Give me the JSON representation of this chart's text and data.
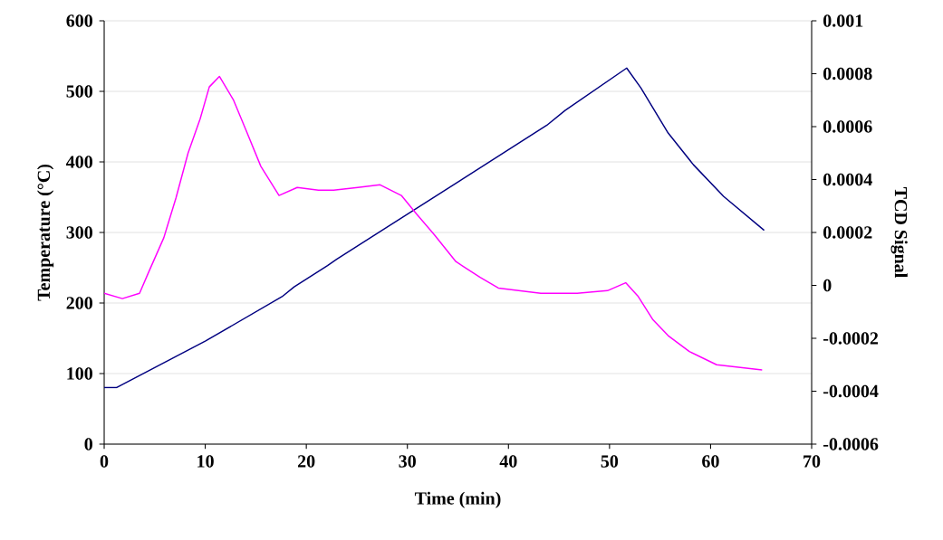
{
  "chart_data": {
    "type": "line",
    "xlabel": "Time (min)",
    "ylabel": "Temperature (°C)",
    "y2label": "TCD Signal",
    "xlim": [
      0,
      70
    ],
    "xticks": [
      0,
      10,
      20,
      30,
      40,
      50,
      60,
      70
    ],
    "ylim": [
      0,
      600
    ],
    "yticks": [
      0,
      100,
      200,
      300,
      400,
      500,
      600
    ],
    "y2lim": [
      -0.0006,
      0.001
    ],
    "y2ticks": [
      -0.0006,
      -0.0004,
      -0.0002,
      0,
      0.0002,
      0.0004,
      0.0006,
      0.0008,
      0.001
    ],
    "grid": "y",
    "series": [
      {
        "color": "#000080",
        "x": [
          0,
          1.2,
          10,
          17.6,
          18.8,
          22.1,
          23.0,
          43.8,
          45.6,
          51.7,
          53.1,
          55.8,
          58.3,
          61.3,
          65.3
        ],
        "values": [
          80,
          80,
          146,
          209,
          223,
          253,
          262,
          452,
          473,
          533,
          505,
          441,
          396,
          351,
          303
        ]
      },
      {
        "color": "#ff00ff",
        "axis": "y2",
        "x": [
          0,
          1.8,
          3.5,
          4.4,
          5.9,
          7.1,
          8.3,
          9.5,
          10.4,
          11.4,
          12.8,
          14.0,
          15.5,
          17.3,
          19.1,
          21.2,
          22.7,
          25.1,
          27.3,
          29.4,
          30.9,
          32.7,
          34.8,
          37.2,
          39.0,
          43.2,
          46.8,
          49.8,
          51.6,
          52.8,
          54.3,
          55.8,
          57.9,
          60.6,
          65.1
        ],
        "values": [
          -3e-05,
          -5e-05,
          -3e-05,
          5e-05,
          0.00018,
          0.00033,
          0.0005,
          0.00063,
          0.00075,
          0.00079,
          0.0007,
          0.00059,
          0.00045,
          0.00034,
          0.00037,
          0.00036,
          0.00036,
          0.00037,
          0.00038,
          0.00034,
          0.00027,
          0.00019,
          9e-05,
          3e-05,
          -1e-05,
          -3e-05,
          -3e-05,
          -2e-05,
          1e-05,
          -4e-05,
          -0.00013,
          -0.00019,
          -0.00025,
          -0.0003,
          -0.00032
        ]
      }
    ]
  }
}
